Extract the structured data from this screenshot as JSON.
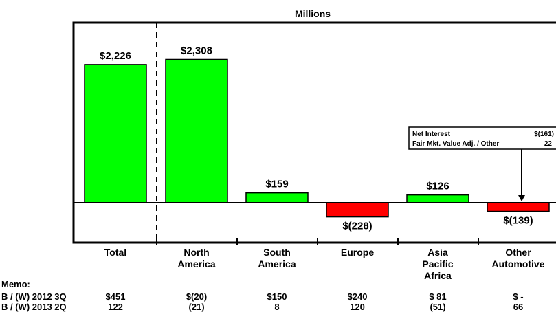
{
  "chart_data": {
    "type": "bar",
    "title": "Millions",
    "categories": [
      [
        "Total"
      ],
      [
        "North",
        "America"
      ],
      [
        "South",
        "America"
      ],
      [
        "Europe"
      ],
      [
        "Asia",
        "Pacific",
        "Africa"
      ],
      [
        "Other",
        "Automotive"
      ]
    ],
    "values": [
      2226,
      2308,
      159,
      -228,
      126,
      -139
    ],
    "value_labels": [
      "$2,226",
      "$2,308",
      "$159",
      "$(228)",
      "$126",
      "$(139)"
    ],
    "positive_color": "#00ff00",
    "negative_color": "#ff0000",
    "ylim": [
      -560,
      2900
    ],
    "callout": {
      "target_category": 5,
      "rows": [
        {
          "label": "Net Interest",
          "value": "$(161)"
        },
        {
          "label": "Fair Mkt. Value Adj. / Other",
          "value": "22"
        }
      ]
    }
  },
  "memo": {
    "title": "Memo:",
    "rows": [
      {
        "label": "B / (W) 2012 3Q",
        "values": [
          "$451",
          "$(20)",
          "$150",
          "$240",
          "$ 81",
          "$  -"
        ]
      },
      {
        "label": "B / (W) 2013 2Q",
        "values": [
          "122",
          "(21)",
          "8",
          "120",
          "(51)",
          "66"
        ]
      }
    ]
  }
}
